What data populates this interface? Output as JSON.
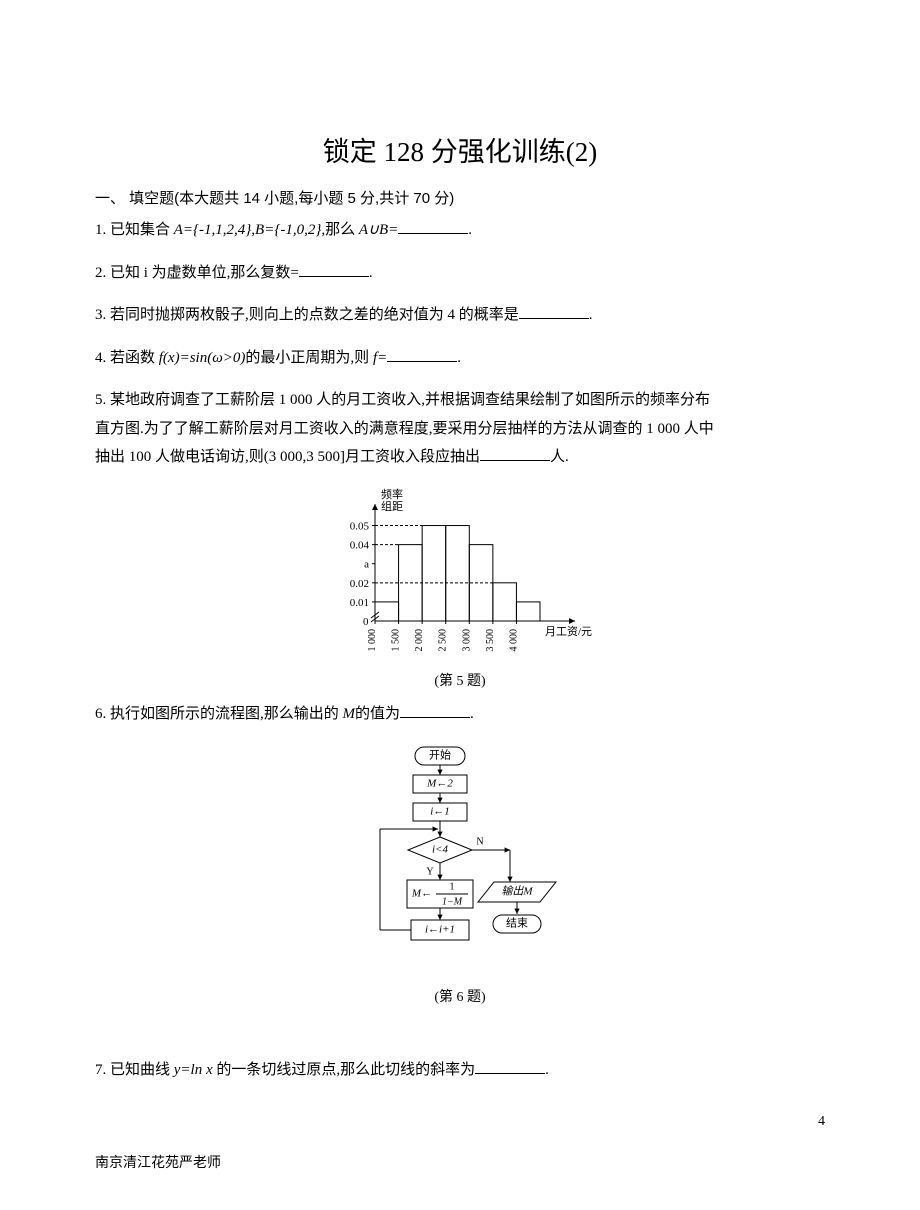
{
  "title": "锁定 128 分强化训练(2)",
  "section": "一、 填空题(本大题共 14 小题,每小题 5 分,共计 70 分)",
  "q1": {
    "num": "1.",
    "pre": "已知集合 ",
    "math": "A={-1,1,2,4},B={-1,0,2},",
    "post": "那么 ",
    "expr": "A∪B=",
    "tail": "."
  },
  "q2": {
    "num": "2.",
    "pre": "已知 i 为虚数单位,那么复数=",
    "tail": "."
  },
  "q3": {
    "num": "3.",
    "pre": "若同时抛掷两枚骰子,则向上的点数之差的绝对值为 4 的概率是",
    "tail": "."
  },
  "q4": {
    "num": "4.",
    "pre": "若函数 ",
    "math": "f(x)=sin(ω>0)",
    "mid": "的最小正周期为,则 ",
    "expr": "f=",
    "tail": "."
  },
  "q5": {
    "num": "5.",
    "l1": "某地政府调查了工薪阶层 1 000 人的月工资收入,并根据调查结果绘制了如图所示的频率分布",
    "l2": "直方图.为了了解工薪阶层对月工资收入的满意程度,要采用分层抽样的方法从调查的 1 000 人中",
    "l3a": "抽出 100 人做电话询访,则(3 000,3 500]月工资收入段应抽出",
    "l3b": "人."
  },
  "q6": {
    "num": "6.",
    "pre": "执行如图所示的流程图,那么输出的 ",
    "var": "M",
    "post": "的值为",
    "tail": "."
  },
  "q7": {
    "num": "7.",
    "pre": "已知曲线 ",
    "math": "y=ln x ",
    "post": "的一条切线过原点,那么此切线的斜率为",
    "tail": "."
  },
  "fig5": {
    "ylabel1": "频率",
    "ylabel2": "组距",
    "yticks": [
      "0.05",
      "0.04",
      "a",
      "0.02",
      "0.01"
    ],
    "ytick_y": [
      0.05,
      0.04,
      0.03,
      0.02,
      0.01
    ],
    "bars": [
      0.01,
      0.04,
      0.05,
      0.05,
      0.04,
      0.02,
      0.01
    ],
    "xticks": [
      "1 000",
      "1 500",
      "2 000",
      "2 500",
      "3 000",
      "3 500",
      "4 000"
    ],
    "xlabel": "月工资/元",
    "caption": "(第 5 题)",
    "colors": {
      "axis": "#000",
      "bar_fill": "none",
      "bar_stroke": "#000",
      "dash": "#000",
      "bg": "#ffffff"
    },
    "ylim": [
      0,
      0.055
    ]
  },
  "fig6": {
    "caption": "(第 6 题)",
    "nodes": {
      "start": "开始",
      "m2": "M←2",
      "i1": "i←1",
      "cond": "i<4",
      "out": "输出M",
      "end": "结束",
      "upd_l": "M←",
      "frac_n": "1",
      "frac_d": "1−M",
      "inc": "i←i+1",
      "Y": "Y",
      "N": "N"
    },
    "colors": {
      "stroke": "#000",
      "fill": "#fff",
      "text": "#000"
    }
  },
  "footer": "南京清江花苑严老师",
  "pagenum": "4"
}
